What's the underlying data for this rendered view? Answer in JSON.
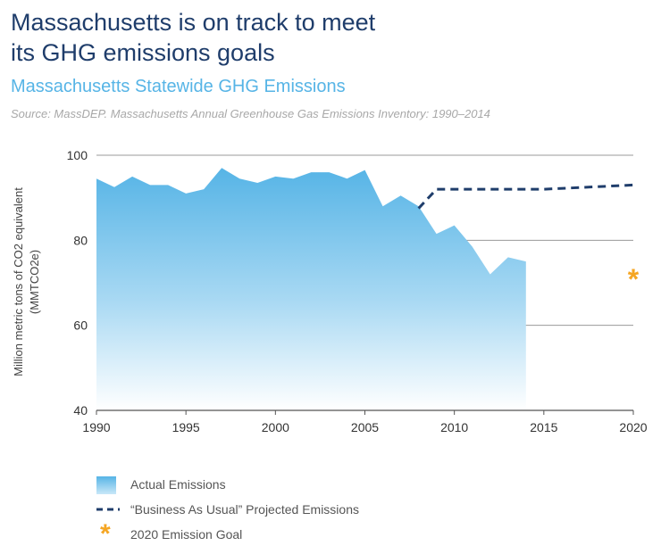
{
  "header": {
    "title_line1": "Massachusetts is on track to meet",
    "title_line2": "its GHG emissions goals",
    "subtitle": "Massachusetts Statewide GHG Emissions",
    "source": "Source: MassDEP. Massachusetts Annual Greenhouse Gas Emissions Inventory: 1990–2014"
  },
  "chart_data": {
    "type": "area",
    "title": "Massachusetts Statewide GHG Emissions",
    "xlabel": "",
    "ylabel_line1": "Million metric tons of CO2 equivalent",
    "ylabel_line2": "(MMTCO2e)",
    "xlim": [
      1990,
      2020
    ],
    "ylim": [
      40,
      100
    ],
    "x_ticks": [
      "1990",
      "1995",
      "2000",
      "2005",
      "2010",
      "2015",
      "2020"
    ],
    "y_ticks": [
      "40",
      "60",
      "80",
      "100"
    ],
    "grid": "horizontal",
    "series": [
      {
        "name": "Actual Emissions",
        "kind": "area",
        "color": "#56b4e6",
        "x": [
          1990,
          1991,
          1992,
          1993,
          1994,
          1995,
          1996,
          1997,
          1998,
          1999,
          2000,
          2001,
          2002,
          2003,
          2004,
          2005,
          2006,
          2007,
          2008,
          2009,
          2010,
          2011,
          2012,
          2013,
          2014
        ],
        "y": [
          94.5,
          92.5,
          95,
          93,
          93,
          91,
          92,
          97,
          94.5,
          93.5,
          95,
          94.5,
          96,
          96,
          94.5,
          96.5,
          88,
          90.5,
          88,
          81.5,
          83.5,
          78.5,
          72,
          76,
          75
        ]
      },
      {
        "name": "“Business As Usual” Projected Emissions",
        "kind": "dashed-line",
        "color": "#1f3d6b",
        "x": [
          2008,
          2009,
          2015,
          2020
        ],
        "y": [
          87.5,
          92,
          92,
          93
        ]
      },
      {
        "name": "2020 Emission Goal",
        "kind": "marker",
        "color": "#f5a623",
        "x": [
          2020
        ],
        "y": [
          71
        ]
      }
    ],
    "legend_position": "bottom-left"
  },
  "legend": {
    "actual": "Actual Emissions",
    "bau": "“Business As Usual” Projected Emissions",
    "goal": "2020 Emission Goal"
  },
  "marker_glyph": "*"
}
